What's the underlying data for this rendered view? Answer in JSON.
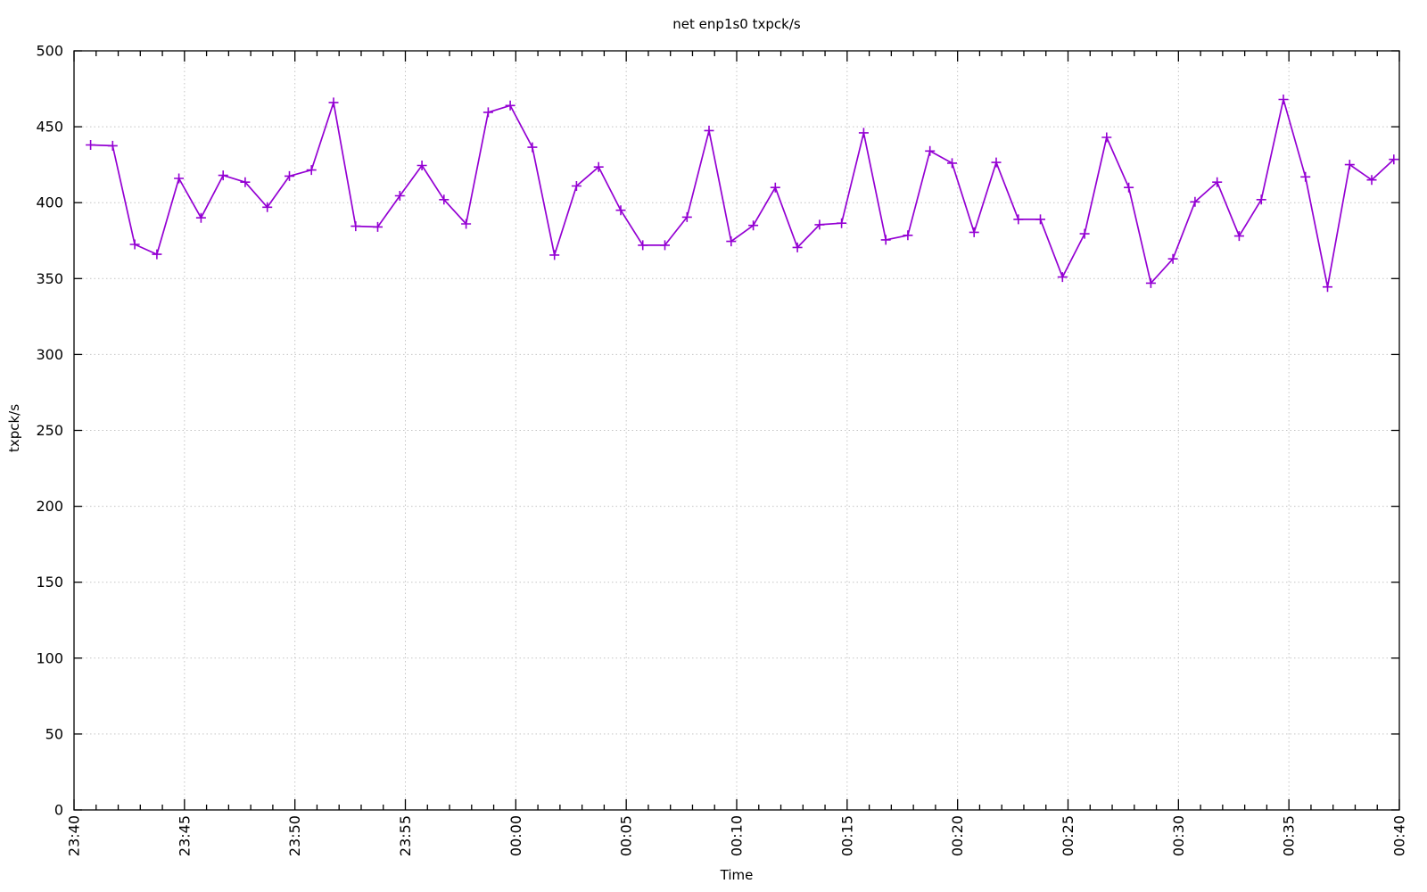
{
  "chart_data": {
    "type": "line",
    "title": "net enp1s0 txpck/s",
    "xlabel": "Time",
    "ylabel": "txpck/s",
    "legend": "none",
    "grid": "dotted",
    "x_range_minutes": [
      0,
      60
    ],
    "ylim": [
      0,
      500
    ],
    "y_ticks": [
      0,
      50,
      100,
      150,
      200,
      250,
      300,
      350,
      400,
      450,
      500
    ],
    "x_ticks": [
      {
        "minute": 0,
        "label": "23:40"
      },
      {
        "minute": 5,
        "label": "23:45"
      },
      {
        "minute": 10,
        "label": "23:50"
      },
      {
        "minute": 15,
        "label": "23:55"
      },
      {
        "minute": 20,
        "label": "00:00"
      },
      {
        "minute": 25,
        "label": "00:05"
      },
      {
        "minute": 30,
        "label": "00:10"
      },
      {
        "minute": 35,
        "label": "00:15"
      },
      {
        "minute": 40,
        "label": "00:20"
      },
      {
        "minute": 45,
        "label": "00:25"
      },
      {
        "minute": 50,
        "label": "00:30"
      },
      {
        "minute": 55,
        "label": "00:35"
      },
      {
        "minute": 60,
        "label": "00:40"
      }
    ],
    "x_minor_tick_step_minutes": 1,
    "series": [
      {
        "name": "txpck/s",
        "color": "#9400d3",
        "marker": "plus",
        "points": [
          [
            0.75,
            438
          ],
          [
            1.75,
            437.5
          ],
          [
            2.75,
            372.5
          ],
          [
            3.75,
            366
          ],
          [
            4.75,
            416
          ],
          [
            5.75,
            390
          ],
          [
            6.75,
            418
          ],
          [
            7.75,
            413.5
          ],
          [
            8.75,
            397
          ],
          [
            9.75,
            417.5
          ],
          [
            10.75,
            421.5
          ],
          [
            11.75,
            466
          ],
          [
            12.75,
            384.5
          ],
          [
            13.75,
            384
          ],
          [
            14.75,
            404.5
          ],
          [
            15.75,
            424.5
          ],
          [
            16.75,
            402
          ],
          [
            17.75,
            386
          ],
          [
            18.75,
            459.5
          ],
          [
            19.75,
            464
          ],
          [
            20.75,
            436.5
          ],
          [
            21.75,
            365.5
          ],
          [
            22.75,
            411
          ],
          [
            23.75,
            423.5
          ],
          [
            24.75,
            395
          ],
          [
            25.75,
            372
          ],
          [
            26.75,
            372
          ],
          [
            27.75,
            390.5
          ],
          [
            28.75,
            447.5
          ],
          [
            29.75,
            374.5
          ],
          [
            30.75,
            385
          ],
          [
            31.75,
            410
          ],
          [
            32.75,
            370.5
          ],
          [
            33.75,
            385.5
          ],
          [
            34.75,
            386.5
          ],
          [
            35.75,
            446
          ],
          [
            36.75,
            375.5
          ],
          [
            37.75,
            378.5
          ],
          [
            38.75,
            434
          ],
          [
            39.75,
            426
          ],
          [
            40.75,
            380.5
          ],
          [
            41.75,
            426.5
          ],
          [
            42.75,
            389
          ],
          [
            43.75,
            389
          ],
          [
            44.75,
            351
          ],
          [
            45.75,
            379.5
          ],
          [
            46.75,
            443
          ],
          [
            47.75,
            410
          ],
          [
            48.75,
            347
          ],
          [
            49.75,
            363
          ],
          [
            50.75,
            400.5
          ],
          [
            51.75,
            413.5
          ],
          [
            52.75,
            378
          ],
          [
            53.75,
            402
          ],
          [
            54.75,
            468
          ],
          [
            55.75,
            417
          ],
          [
            56.75,
            344.5
          ],
          [
            57.75,
            425
          ],
          [
            58.75,
            415
          ],
          [
            59.75,
            428.5
          ]
        ]
      }
    ],
    "colors": {
      "background": "#ffffff",
      "border": "#000000",
      "grid": "#c4c4c4",
      "text": "#000000",
      "line": "#9400d3"
    }
  }
}
